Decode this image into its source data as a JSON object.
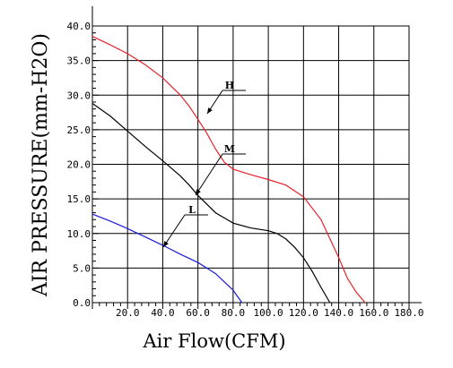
{
  "chart_data": {
    "type": "line",
    "xlabel": "Air Flow(CFM)",
    "ylabel": "AIR PRESSURE(mm-H2O)",
    "xlim": [
      0,
      180
    ],
    "ylim": [
      0,
      40
    ],
    "x_ticks": [
      "20.0",
      "40.0",
      "60.0",
      "80.0",
      "100.0",
      "120.0",
      "140.0",
      "160.0",
      "180.0"
    ],
    "y_ticks": [
      "0.0",
      "5.0",
      "10.0",
      "15.0",
      "20.0",
      "25.0",
      "30.0",
      "35.0",
      "40.0"
    ],
    "grid": true,
    "series": [
      {
        "name": "H",
        "color": "#e8222a",
        "x": [
          0,
          10,
          20,
          30,
          40,
          50,
          55,
          60,
          65,
          70,
          75,
          80,
          90,
          100,
          110,
          120,
          130,
          140,
          145,
          150,
          155
        ],
        "y": [
          38.5,
          37.3,
          36,
          34.4,
          32.5,
          30,
          28.4,
          26.5,
          24.5,
          22.2,
          20.3,
          19.3,
          18.5,
          17.8,
          17,
          15.3,
          12,
          6.5,
          3.5,
          1.5,
          0
        ]
      },
      {
        "name": "M",
        "color": "#000000",
        "x": [
          0,
          10,
          20,
          30,
          40,
          50,
          55,
          60,
          70,
          80,
          90,
          100,
          105,
          110,
          115,
          120,
          125,
          130,
          135
        ],
        "y": [
          28.8,
          27,
          24.8,
          22.6,
          20.5,
          18.3,
          17,
          15.5,
          13,
          11.5,
          10.8,
          10.4,
          10,
          9.2,
          8,
          6.5,
          4.5,
          2.2,
          0
        ]
      },
      {
        "name": "L",
        "color": "#1a1adc",
        "x": [
          0,
          10,
          20,
          30,
          40,
          50,
          60,
          65,
          70,
          75,
          80,
          85
        ],
        "y": [
          12.8,
          11.8,
          10.7,
          9.5,
          8.3,
          7,
          5.8,
          5,
          4.2,
          3,
          1.8,
          0
        ]
      }
    ],
    "annotations": [
      {
        "label": "H",
        "series": "H"
      },
      {
        "label": "M",
        "series": "M"
      },
      {
        "label": "L",
        "series": "L"
      }
    ]
  }
}
